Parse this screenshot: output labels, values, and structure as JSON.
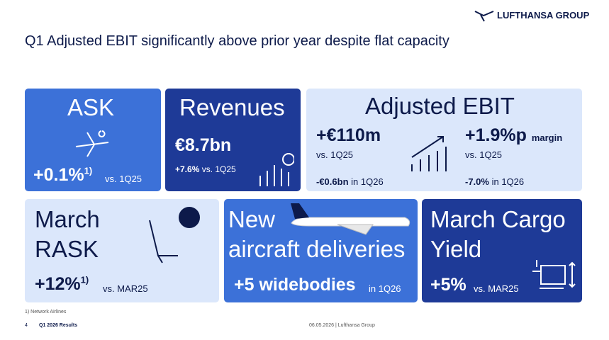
{
  "header": {
    "logo": "LUFTHANSA GROUP",
    "title": "Q1 Adjusted EBIT significantly above prior year despite flat capacity"
  },
  "tiles": {
    "ask": {
      "title": "ASK",
      "value": "+0.1%",
      "note": "1)",
      "comparison": "vs. 1Q25"
    },
    "revenues": {
      "title": "Revenues",
      "value": "€8.7bn",
      "change": "+7.6%",
      "comparison": "vs. 1Q25"
    },
    "ebit": {
      "title": "Adjusted EBIT",
      "value": "+€110m",
      "comparison": "vs. 1Q25",
      "absolute": "-€0.6bn",
      "absolute_period": "in 1Q26",
      "margin_value": "+1.9%p",
      "margin_label": "margin",
      "margin_comparison": "vs. 1Q25",
      "margin_absolute": "-7.0%",
      "margin_period": "in 1Q26"
    },
    "rask": {
      "title_line1": "March",
      "title_line2": "RASK",
      "value": "+12%",
      "note": "1)",
      "comparison": "vs. MAR25"
    },
    "aircraft": {
      "title_line1": "New",
      "title_line2": "aircraft deliveries",
      "value": "+5 widebodies",
      "comparison": "in 1Q26"
    },
    "cargo": {
      "title_line1": "March Cargo",
      "title_line2": "Yield",
      "value": "+5%",
      "comparison": "vs. MAR25"
    }
  },
  "footnote": "1) Network Airlines",
  "footer": {
    "page": "4",
    "deck": "Q1 2026 Results",
    "date": "06.05.2026 | Lufthansa Group"
  }
}
